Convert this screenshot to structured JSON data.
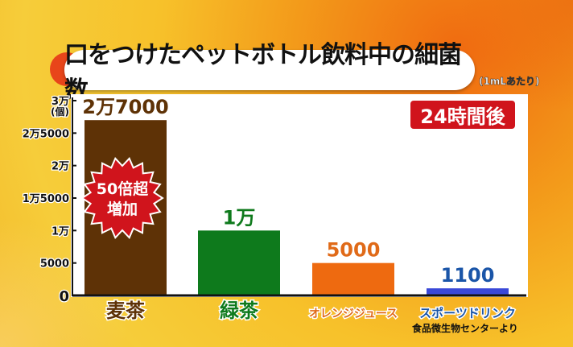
{
  "title": "口をつけたペットボトル飲料中の細菌数",
  "unit_note": "(1mLあたり)",
  "badge": "24時間後",
  "source": "食品微生物センターより",
  "burst": {
    "line1": "50倍超",
    "line2": "増加"
  },
  "chart_data": {
    "type": "bar",
    "title": "口をつけたペットボトル飲料中の細菌数",
    "categories": [
      "麦茶",
      "緑茶",
      "オレンジジュース",
      "スポーツドリンク"
    ],
    "values": [
      27000,
      10000,
      5000,
      1100
    ],
    "data_labels": [
      "2万7000",
      "1万",
      "5000",
      "1100"
    ],
    "colors": [
      "#5e3206",
      "#0e7a1c",
      "#ee6a10",
      "#3a48d8"
    ],
    "label_colors": [
      "#5e3206",
      "#0e7a1c",
      "#e06a18",
      "#1a55a8"
    ],
    "ylabel": "(個)",
    "ylim": [
      0,
      30000
    ],
    "yticks": [
      0,
      5000,
      10000,
      15000,
      20000,
      25000,
      30000
    ],
    "ytick_labels": [
      "0",
      "5000",
      "1万",
      "1万5000",
      "2万",
      "2万5000",
      "3万"
    ],
    "grid": false
  }
}
